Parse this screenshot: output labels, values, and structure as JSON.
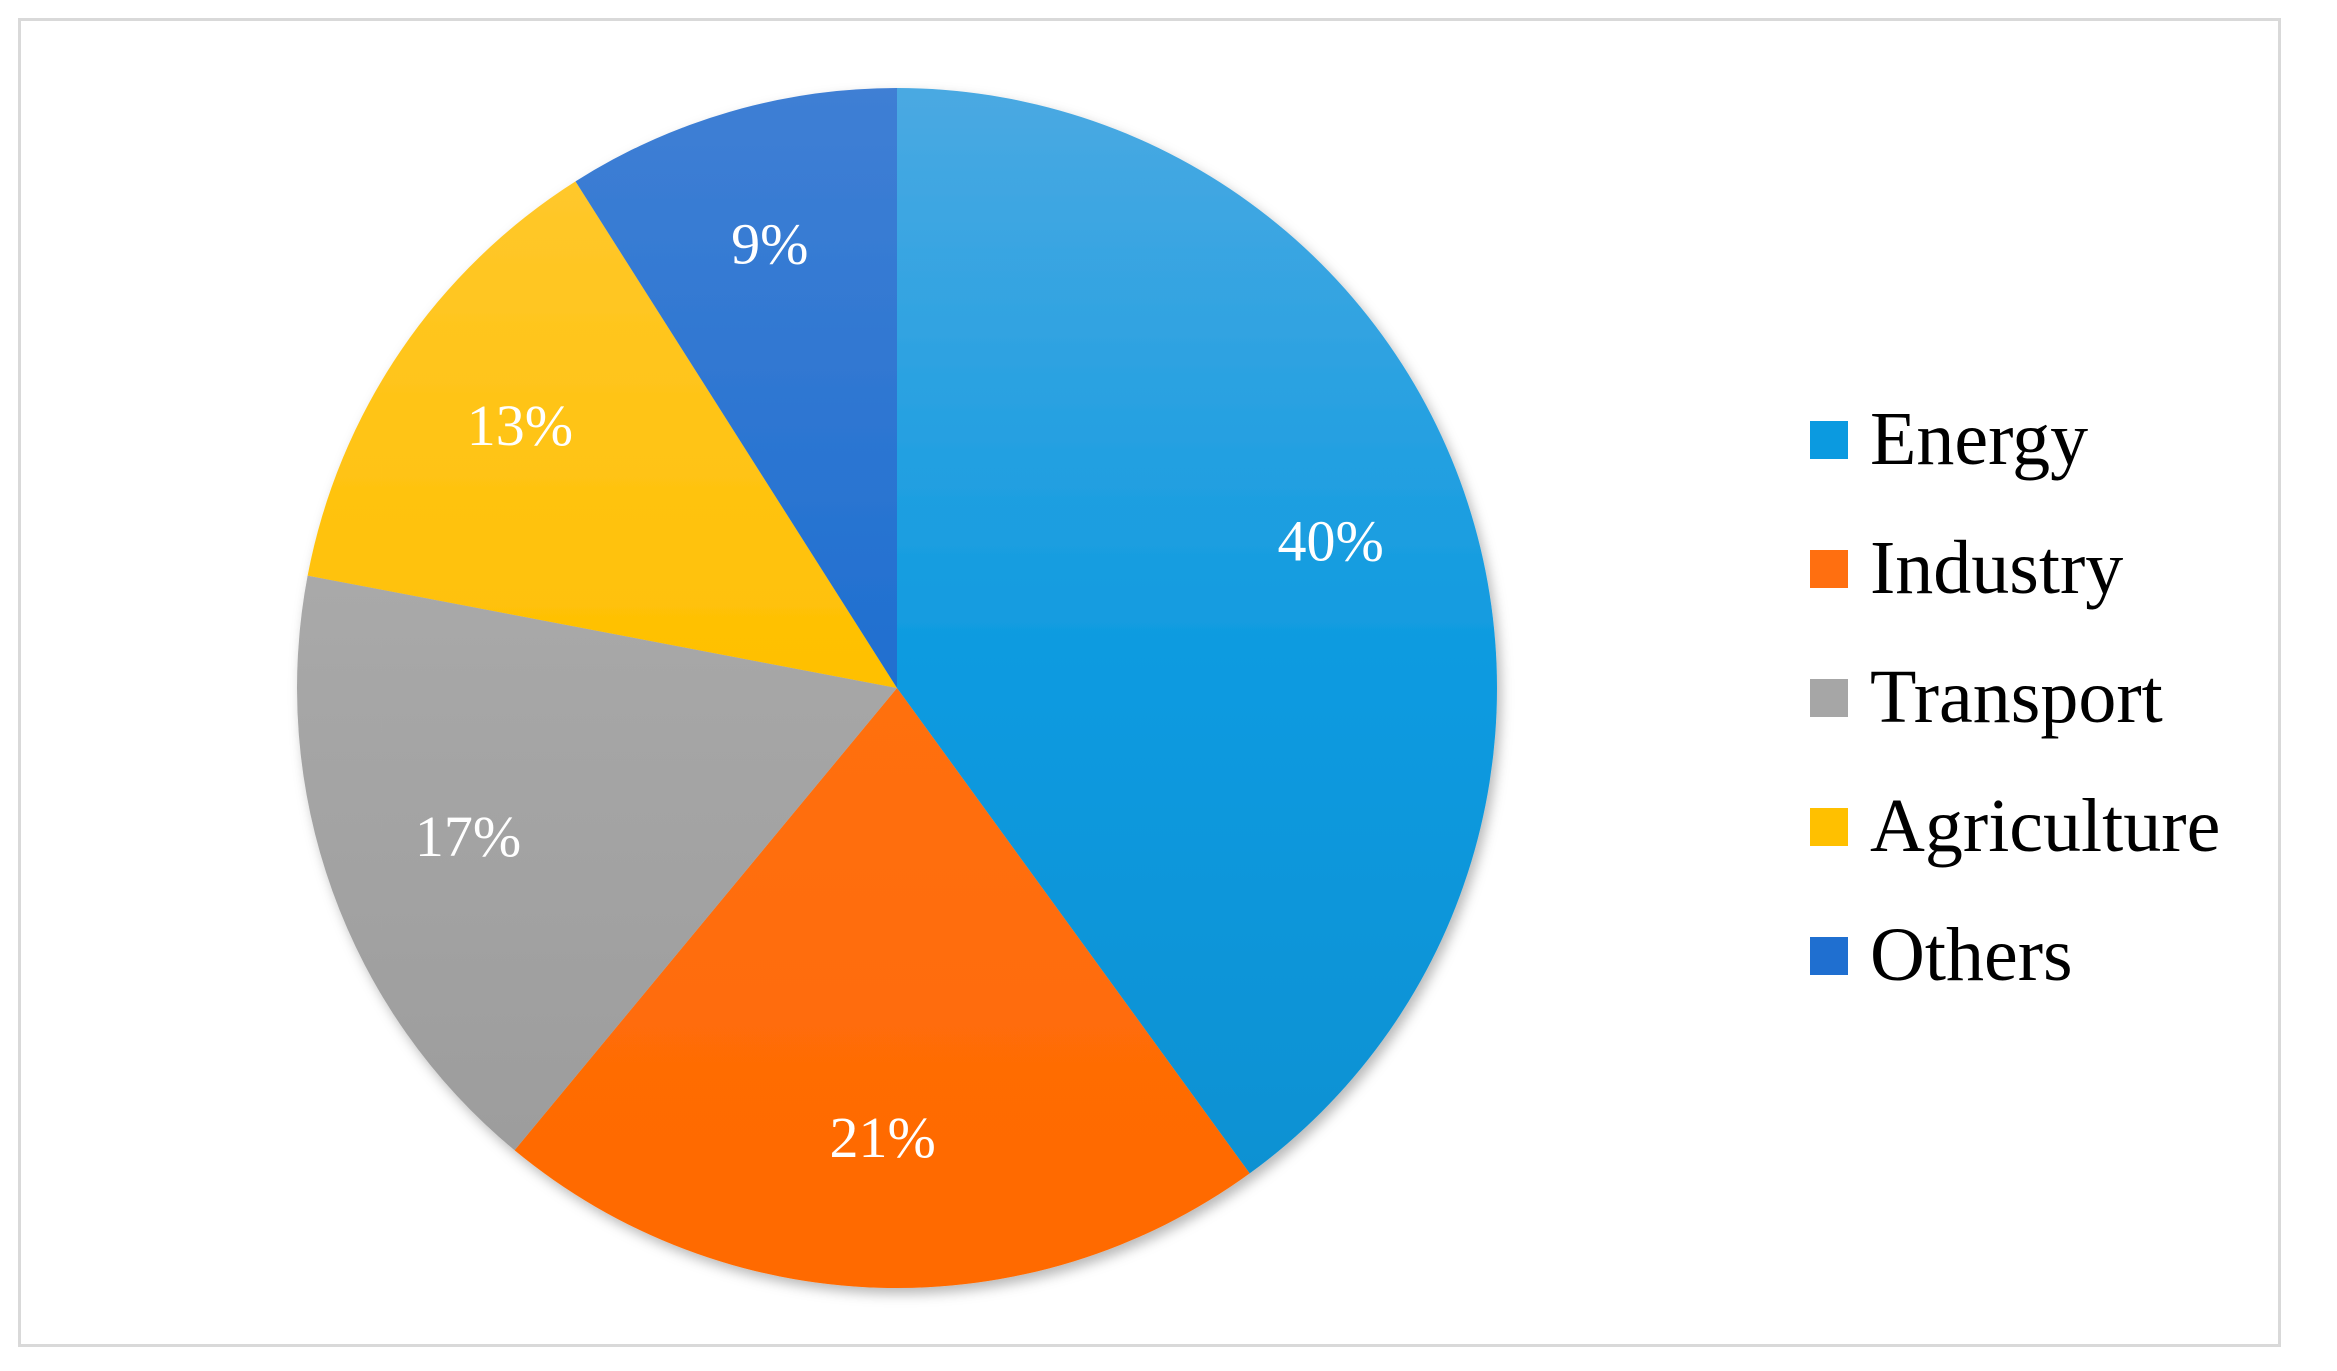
{
  "chart_data": {
    "type": "pie",
    "title": "",
    "legend_position": "right",
    "slices": [
      {
        "name": "Energy",
        "value": 40,
        "label": "40%",
        "color": "#0b9ae0",
        "color_light": "#4aa9e2",
        "color_dark": "#0a8fcf"
      },
      {
        "name": "Industry",
        "value": 21,
        "label": "21%",
        "color": "#ff6f10",
        "color_light": "#ff8a3d",
        "color_dark": "#ff6a00"
      },
      {
        "name": "Transport",
        "value": 17,
        "label": "17%",
        "color": "#a6a6a6",
        "color_light": "#b8b8b8",
        "color_dark": "#9a9a9a"
      },
      {
        "name": "Agriculture",
        "value": 13,
        "label": "13%",
        "color": "#ffc000",
        "color_light": "#ffc933",
        "color_dark": "#ffbb00"
      },
      {
        "name": "Others",
        "value": 9,
        "label": "9%",
        "color": "#1f6fd0",
        "color_light": "#3f7fd4",
        "color_dark": "#0d5fc4"
      }
    ]
  }
}
